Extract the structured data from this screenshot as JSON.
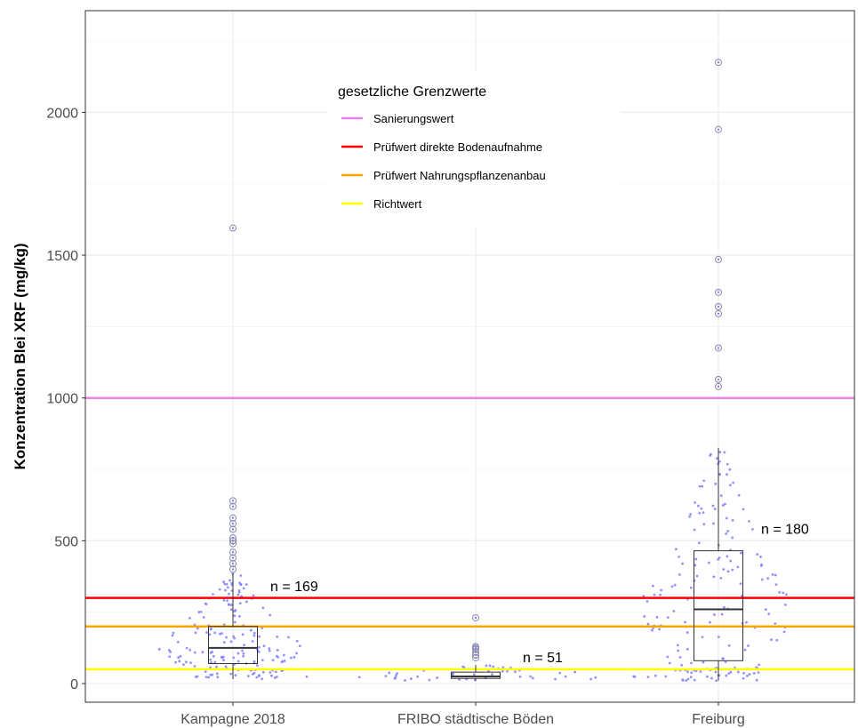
{
  "chart_data": {
    "type": "box",
    "ylabel": "Konzentration Blei XRF (mg/kg)",
    "ylim": [
      -50,
      2270
    ],
    "y_ticks": [
      0,
      500,
      1000,
      1500,
      2000
    ],
    "grid": true,
    "categories": [
      "Kampagne 2018",
      "FRIBO städtische Böden",
      "Freiburg"
    ],
    "boxes": [
      {
        "category": "Kampagne 2018",
        "n_label": "n =  169",
        "n_y": 340,
        "min": 15,
        "q1": 70,
        "median": 125,
        "q3": 200,
        "max": 385,
        "outliers": [
          400,
          420,
          440,
          460,
          490,
          500,
          510,
          540,
          560,
          580,
          620,
          640,
          1595
        ]
      },
      {
        "category": "FRIBO städtische Böden",
        "n_label": "n =  51",
        "n_y": 90,
        "min": 10,
        "q1": 18,
        "median": 25,
        "q3": 40,
        "max": 65,
        "outliers": [
          90,
          100,
          110,
          120,
          125,
          130,
          230
        ]
      },
      {
        "category": "Freiburg",
        "n_label": "n =  180",
        "n_y": 540,
        "min": 10,
        "q1": 80,
        "median": 260,
        "q3": 465,
        "max": 825,
        "outliers": [
          1040,
          1065,
          1175,
          1295,
          1320,
          1370,
          1485,
          1940,
          2175
        ]
      }
    ],
    "reference_lines": [
      {
        "label": "Sanierungswert",
        "value": 1000,
        "color": "#ee82ee"
      },
      {
        "label": "Prüfwert direkte Bodenaufnahme",
        "value": 300,
        "color": "#ff0000"
      },
      {
        "label": "Prüfwert Nahrungspflanzenanbau",
        "value": 200,
        "color": "#ffa500"
      },
      {
        "label": "Richtwert",
        "value": 50,
        "color": "#ffff00"
      }
    ],
    "legend": {
      "title": "gesetzliche Grenzwerte",
      "position": "top-center"
    },
    "point_color": "#7f7fff"
  }
}
